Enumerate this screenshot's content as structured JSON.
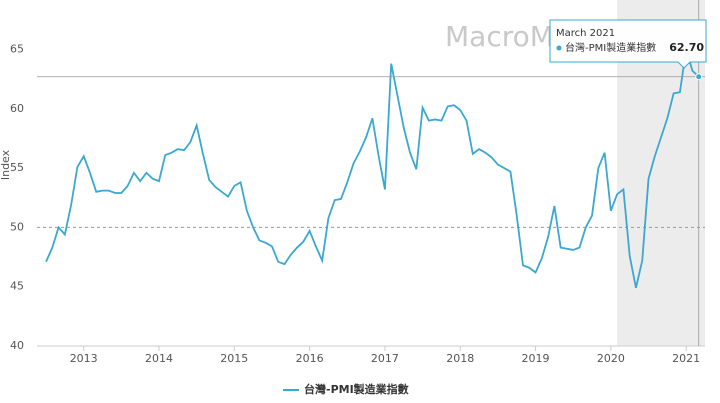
{
  "chart_data": {
    "type": "line",
    "watermark": "MacroMicro",
    "y_label": "Index",
    "x": [
      "2012-07",
      "2012-08",
      "2012-09",
      "2012-10",
      "2012-11",
      "2012-12",
      "2013-01",
      "2013-02",
      "2013-03",
      "2013-04",
      "2013-05",
      "2013-06",
      "2013-07",
      "2013-08",
      "2013-09",
      "2013-10",
      "2013-11",
      "2013-12",
      "2014-01",
      "2014-02",
      "2014-03",
      "2014-04",
      "2014-05",
      "2014-06",
      "2014-07",
      "2014-08",
      "2014-09",
      "2014-10",
      "2014-11",
      "2014-12",
      "2015-01",
      "2015-02",
      "2015-03",
      "2015-04",
      "2015-05",
      "2015-06",
      "2015-07",
      "2015-08",
      "2015-09",
      "2015-10",
      "2015-11",
      "2015-12",
      "2016-01",
      "2016-02",
      "2016-03",
      "2016-04",
      "2016-05",
      "2016-06",
      "2016-07",
      "2016-08",
      "2016-09",
      "2016-10",
      "2016-11",
      "2016-12",
      "2017-01",
      "2017-02",
      "2017-03",
      "2017-04",
      "2017-05",
      "2017-06",
      "2017-07",
      "2017-08",
      "2017-09",
      "2017-10",
      "2017-11",
      "2017-12",
      "2018-01",
      "2018-02",
      "2018-03",
      "2018-04",
      "2018-05",
      "2018-06",
      "2018-07",
      "2018-08",
      "2018-09",
      "2018-10",
      "2018-11",
      "2018-12",
      "2019-01",
      "2019-02",
      "2019-03",
      "2019-04",
      "2019-05",
      "2019-06",
      "2019-07",
      "2019-08",
      "2019-09",
      "2019-10",
      "2019-11",
      "2019-12",
      "2020-01",
      "2020-02",
      "2020-03",
      "2020-04",
      "2020-05",
      "2020-06",
      "2020-07",
      "2020-08",
      "2020-09",
      "2020-10",
      "2020-11",
      "2020-12",
      "2021-01",
      "2021-02",
      "2021-03"
    ],
    "series": [
      {
        "name": "台灣-PMI製造業指數",
        "color": "#3aa8d0",
        "values": [
          47.1,
          48.3,
          50.0,
          49.4,
          51.9,
          55.1,
          56.0,
          54.6,
          53.0,
          53.1,
          53.1,
          52.9,
          52.9,
          53.5,
          54.6,
          53.9,
          54.6,
          54.1,
          53.9,
          56.1,
          56.3,
          56.6,
          56.5,
          57.2,
          58.6,
          56.2,
          54.0,
          53.4,
          53.0,
          52.6,
          53.5,
          53.8,
          51.4,
          50.0,
          48.9,
          48.7,
          48.4,
          47.1,
          46.9,
          47.7,
          48.3,
          48.8,
          49.7,
          48.4,
          47.2,
          50.8,
          52.3,
          52.4,
          53.8,
          55.4,
          56.4,
          57.6,
          59.2,
          56.0,
          53.2,
          63.8,
          61.1,
          58.4,
          56.3,
          54.9,
          60.1,
          59.0,
          59.1,
          59.0,
          60.2,
          60.3,
          59.9,
          59.0,
          56.2,
          56.6,
          56.3,
          55.9,
          55.3,
          55.0,
          54.7,
          51.0,
          46.8,
          46.6,
          46.2,
          47.4,
          49.2,
          51.8,
          48.3,
          48.2,
          48.1,
          48.3,
          50.0,
          51.0,
          55.0,
          56.3,
          51.4,
          52.8,
          53.2,
          47.6,
          44.9,
          47.2,
          54.1,
          56.0,
          57.6,
          59.2,
          61.3,
          61.4,
          65.0,
          63.2,
          62.7
        ]
      }
    ],
    "xlim": [
      2012.38,
      2021.25
    ],
    "xticks": [
      2013,
      2014,
      2015,
      2016,
      2017,
      2018,
      2019,
      2020,
      2021
    ],
    "ylim": [
      40,
      65.8
    ],
    "yticks": [
      40,
      45,
      50,
      55,
      60,
      65
    ],
    "reference_line": 50,
    "shade_start": "2020-02",
    "tooltip": {
      "title": "March 2021",
      "value_label": "62.70"
    }
  }
}
